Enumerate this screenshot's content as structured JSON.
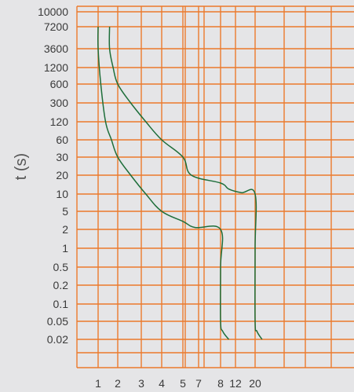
{
  "chart_data": {
    "type": "line",
    "ylabel": "t (s)",
    "xlabel": "",
    "grid": true,
    "y_ticks": [
      "10000",
      "7200",
      "3600",
      "1200",
      "600",
      "300",
      "120",
      "60",
      "30",
      "20",
      "10",
      "5",
      "2",
      "1",
      "0.5",
      "0.2",
      "0.1",
      "0.05",
      "0.02"
    ],
    "x_ticks": [
      "1",
      "2",
      "3",
      "4",
      "5",
      "7",
      "8",
      "12",
      "20"
    ],
    "colors": {
      "grid": "#ec7a2c",
      "curve": "#1e6e3a",
      "background": "#e5e5e7"
    },
    "series": [
      {
        "x": [
          1.0,
          1.0,
          1.1,
          1.3,
          1.6,
          2.0,
          2.5,
          3.2,
          4.0,
          5.0,
          6.5,
          8.0,
          8.0,
          8.0,
          8.5,
          10.0
        ],
        "y": [
          7200,
          3600,
          600,
          120,
          60,
          30,
          20,
          10,
          5,
          3,
          2.2,
          2,
          0.5,
          0.05,
          0.03,
          0.02
        ]
      },
      {
        "x": [
          1.5,
          1.5,
          1.7,
          2.0,
          2.5,
          3.2,
          4.0,
          5.0,
          6.0,
          8.0,
          10.0,
          14.0,
          20.0,
          20.0,
          20.0,
          21.0,
          24.0
        ],
        "y": [
          7200,
          3600,
          1200,
          600,
          300,
          120,
          60,
          30,
          20,
          15,
          12,
          10.5,
          10,
          1,
          0.05,
          0.03,
          0.02
        ]
      }
    ]
  }
}
